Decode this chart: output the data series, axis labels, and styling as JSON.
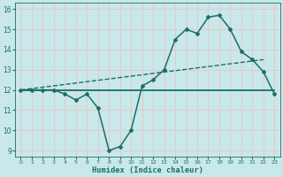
{
  "xlabel": "Humidex (Indice chaleur)",
  "bg_color": "#c8e8ea",
  "grid_color": "#e8c8c8",
  "line_color": "#1a6e6a",
  "xlim": [
    -0.5,
    23.5
  ],
  "ylim": [
    8.7,
    16.3
  ],
  "xticks": [
    0,
    1,
    2,
    3,
    4,
    5,
    6,
    7,
    8,
    9,
    10,
    11,
    12,
    13,
    14,
    15,
    16,
    17,
    18,
    19,
    20,
    21,
    22,
    23
  ],
  "yticks": [
    9,
    10,
    11,
    12,
    13,
    14,
    15,
    16
  ],
  "main_x": [
    0,
    1,
    2,
    3,
    4,
    5,
    6,
    7,
    8,
    9,
    10,
    11,
    12,
    13,
    14,
    15,
    16,
    17,
    18,
    19,
    20,
    21,
    22,
    23
  ],
  "main_y": [
    12.0,
    12.0,
    12.0,
    12.0,
    11.8,
    11.5,
    11.8,
    11.1,
    9.0,
    9.2,
    10.0,
    12.2,
    12.5,
    13.0,
    14.5,
    15.0,
    14.8,
    15.6,
    15.7,
    15.0,
    13.9,
    13.5,
    12.9,
    11.8
  ],
  "trend1_x": [
    0,
    23
  ],
  "trend1_y": [
    12.0,
    12.0
  ],
  "trend2_x": [
    0,
    22
  ],
  "trend2_y": [
    12.0,
    13.5
  ]
}
